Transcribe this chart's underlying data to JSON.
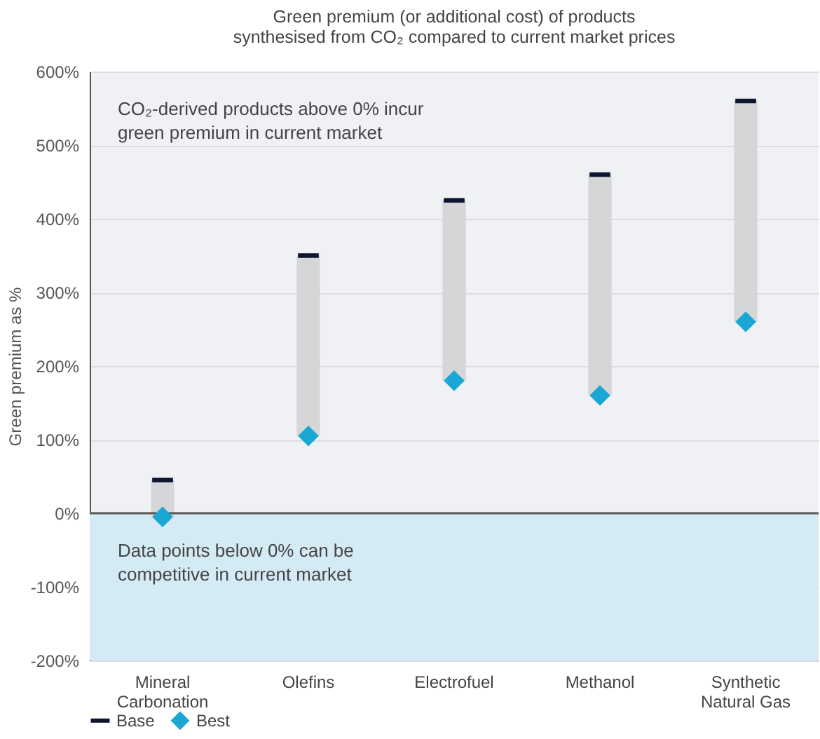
{
  "chart_data": {
    "type": "bar",
    "title": "Green premium (or additional cost) of products synthesised from CO₂ compared to current market prices",
    "ylabel": "Green premium as %",
    "categories": [
      "Mineral Carbonation",
      "Olefins",
      "Electrofuel",
      "Methanol",
      "Synthetic Natural Gas"
    ],
    "series": [
      {
        "type": "bar",
        "color": "#d5d6d8",
        "base": [
          -5,
          105,
          180,
          160,
          260
        ],
        "values": [
          50,
          245,
          245,
          300,
          300
        ]
      },
      {
        "type": "scatter",
        "name": "Base",
        "color": "#0d1630",
        "values": [
          45,
          350,
          425,
          460,
          560
        ]
      },
      {
        "type": "scatter",
        "name": "Best",
        "color": "#1aa7d4",
        "marker": "diamond",
        "values": [
          -5,
          105,
          180,
          160,
          260
        ]
      }
    ],
    "ylim": [
      -200,
      600
    ],
    "yticks": [
      {
        "value": -200,
        "label": "-200%"
      },
      {
        "value": -100,
        "label": "-100%"
      },
      {
        "value": 0,
        "label": "0%"
      },
      {
        "value": 100,
        "label": "100%"
      },
      {
        "value": 200,
        "label": "200%"
      },
      {
        "value": 300,
        "label": "300%"
      },
      {
        "value": 400,
        "label": "400%"
      },
      {
        "value": 500,
        "label": "500%"
      },
      {
        "value": 600,
        "label": "600%"
      }
    ],
    "bands": [
      {
        "axis": "y",
        "from": -200,
        "to": 0,
        "color": "#d4ebf5"
      }
    ],
    "ref_lines": [
      {
        "axis": "y",
        "value": 0,
        "color": "#555555"
      }
    ],
    "annotations": [
      "CO₂-derived products above 0% incur green premium in current market",
      "Data points below 0% can be competitive in current market"
    ],
    "grid": "y",
    "legend": "bottom left"
  }
}
